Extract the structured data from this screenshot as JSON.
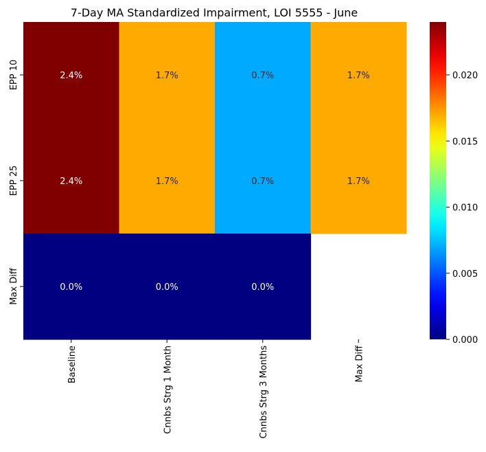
{
  "chart_data": {
    "type": "heatmap",
    "title": "7-Day MA Standardized Impairment, LOI 5555 - June",
    "xlabel": "",
    "ylabel": "",
    "x_categories": [
      "Baseline",
      "Cnnbs Strg 1 Month",
      "Cnnbs Strg 3 Months",
      "Max Diff"
    ],
    "y_categories": [
      "EPP 10",
      "EPP 25",
      "Max Diff"
    ],
    "values": [
      [
        0.024,
        0.017,
        0.007,
        0.017
      ],
      [
        0.024,
        0.017,
        0.007,
        0.017
      ],
      [
        0.0,
        0.0,
        0.0,
        null
      ]
    ],
    "annotations": [
      [
        "2.4%",
        "1.7%",
        "0.7%",
        "1.7%"
      ],
      [
        "2.4%",
        "1.7%",
        "0.7%",
        "1.7%"
      ],
      [
        "0.0%",
        "0.0%",
        "0.0%",
        ""
      ]
    ],
    "colormap": "jet",
    "colorbar": {
      "vmin": 0.0,
      "vmax": 0.024,
      "ticks": [
        "0.000",
        "0.005",
        "0.010",
        "0.015",
        "0.020"
      ],
      "tick_values": [
        0.0,
        0.005,
        0.01,
        0.015,
        0.02
      ]
    },
    "grid": false,
    "legend": "none"
  }
}
